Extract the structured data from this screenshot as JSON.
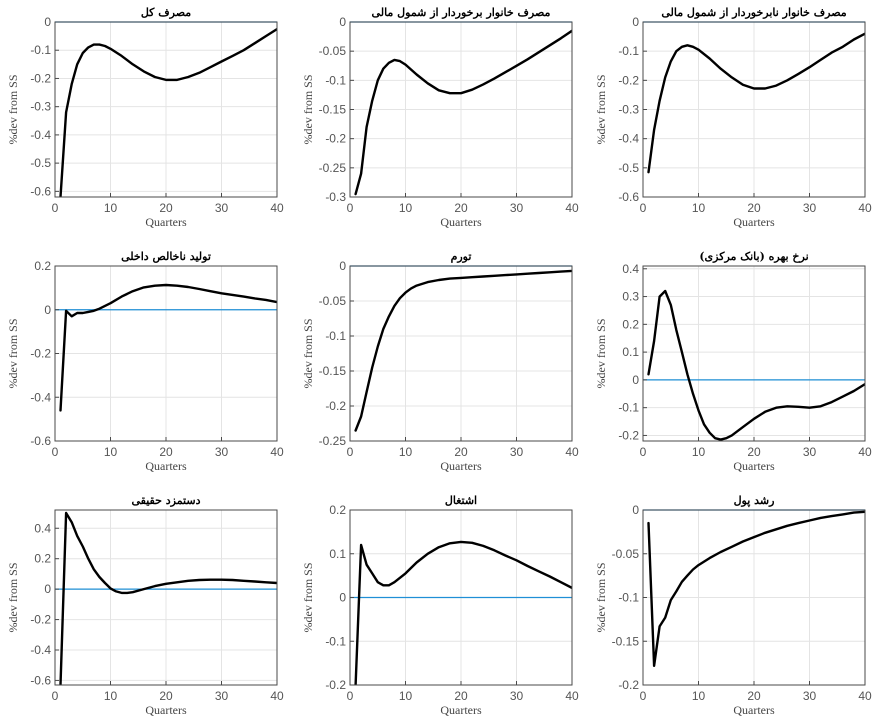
{
  "colors": {
    "series": "#000000",
    "zero_line": "#1f8fd6",
    "grid": "#e4e4e4",
    "axes": "#4a4a4a"
  },
  "chart_data": [
    {
      "type": "line",
      "title": "مصرف کل",
      "xlabel": "Quarters",
      "ylabel": "%dev from SS",
      "xlim": [
        0,
        40
      ],
      "ylim": [
        -0.62,
        0
      ],
      "xticks": [
        0,
        10,
        20,
        30,
        40
      ],
      "yticks": [
        0,
        -0.1,
        -0.2,
        -0.3,
        -0.4,
        -0.5,
        -0.6
      ],
      "grid": true,
      "zero_line": 0,
      "series": [
        {
          "x": [
            1,
            2,
            3,
            4,
            5,
            6,
            7,
            8,
            9,
            10,
            12,
            14,
            16,
            18,
            20,
            22,
            24,
            26,
            28,
            30,
            32,
            34,
            36,
            38,
            40
          ],
          "y": [
            -0.62,
            -0.32,
            -0.22,
            -0.15,
            -0.11,
            -0.09,
            -0.08,
            -0.08,
            -0.085,
            -0.095,
            -0.12,
            -0.15,
            -0.175,
            -0.195,
            -0.205,
            -0.205,
            -0.195,
            -0.18,
            -0.16,
            -0.14,
            -0.12,
            -0.1,
            -0.075,
            -0.05,
            -0.025
          ]
        }
      ]
    },
    {
      "type": "line",
      "title": "مصرف خانوار برخوردار از شمول مالی",
      "xlabel": "Quarters",
      "ylabel": "%dev from SS",
      "xlim": [
        0,
        40
      ],
      "ylim": [
        -0.3,
        0
      ],
      "xticks": [
        0,
        10,
        20,
        30,
        40
      ],
      "yticks": [
        0,
        -0.05,
        -0.1,
        -0.15,
        -0.2,
        -0.25,
        -0.3
      ],
      "grid": true,
      "zero_line": 0,
      "series": [
        {
          "x": [
            1,
            2,
            3,
            4,
            5,
            6,
            7,
            8,
            9,
            10,
            12,
            14,
            16,
            18,
            20,
            22,
            24,
            26,
            28,
            30,
            32,
            34,
            36,
            38,
            40
          ],
          "y": [
            -0.295,
            -0.26,
            -0.18,
            -0.135,
            -0.1,
            -0.08,
            -0.07,
            -0.065,
            -0.067,
            -0.073,
            -0.09,
            -0.105,
            -0.117,
            -0.122,
            -0.122,
            -0.116,
            -0.107,
            -0.097,
            -0.086,
            -0.075,
            -0.064,
            -0.052,
            -0.04,
            -0.028,
            -0.015
          ]
        }
      ]
    },
    {
      "type": "line",
      "title": "مصرف خانوار نابرخوردار از شمول مالی",
      "xlabel": "Quarters",
      "ylabel": "%dev from SS",
      "xlim": [
        0,
        40
      ],
      "ylim": [
        -0.6,
        0
      ],
      "xticks": [
        0,
        10,
        20,
        30,
        40
      ],
      "yticks": [
        0,
        -0.1,
        -0.2,
        -0.3,
        -0.4,
        -0.5,
        -0.6
      ],
      "grid": true,
      "zero_line": 0,
      "series": [
        {
          "x": [
            1,
            2,
            3,
            4,
            5,
            6,
            7,
            8,
            9,
            10,
            12,
            14,
            16,
            18,
            20,
            22,
            24,
            26,
            28,
            30,
            32,
            34,
            36,
            38,
            40
          ],
          "y": [
            -0.515,
            -0.37,
            -0.27,
            -0.19,
            -0.135,
            -0.1,
            -0.085,
            -0.08,
            -0.085,
            -0.095,
            -0.125,
            -0.16,
            -0.19,
            -0.215,
            -0.228,
            -0.228,
            -0.218,
            -0.2,
            -0.178,
            -0.155,
            -0.13,
            -0.105,
            -0.085,
            -0.06,
            -0.04
          ]
        }
      ]
    },
    {
      "type": "line",
      "title": "تولید ناخالص داخلی",
      "xlabel": "Quarters",
      "ylabel": "%dev from SS",
      "xlim": [
        0,
        40
      ],
      "ylim": [
        -0.6,
        0.2
      ],
      "xticks": [
        0,
        10,
        20,
        30,
        40
      ],
      "yticks": [
        0.2,
        0,
        -0.2,
        -0.4,
        -0.6
      ],
      "grid": true,
      "zero_line": 0,
      "series": [
        {
          "x": [
            1,
            2,
            3,
            4,
            5,
            6,
            7,
            8,
            10,
            12,
            14,
            16,
            18,
            20,
            22,
            24,
            26,
            28,
            30,
            32,
            34,
            36,
            38,
            40
          ],
          "y": [
            -0.46,
            -0.005,
            -0.03,
            -0.015,
            -0.015,
            -0.01,
            -0.005,
            0.005,
            0.03,
            0.06,
            0.085,
            0.102,
            0.11,
            0.113,
            0.11,
            0.104,
            0.095,
            0.085,
            0.075,
            0.068,
            0.06,
            0.052,
            0.045,
            0.035
          ]
        }
      ]
    },
    {
      "type": "line",
      "title": "تورم",
      "xlabel": "Quarters",
      "ylabel": "%dev from SS",
      "xlim": [
        0,
        40
      ],
      "ylim": [
        -0.25,
        0
      ],
      "xticks": [
        0,
        10,
        20,
        30,
        40
      ],
      "yticks": [
        0,
        -0.05,
        -0.1,
        -0.15,
        -0.2,
        -0.25
      ],
      "grid": true,
      "zero_line": 0,
      "series": [
        {
          "x": [
            1,
            2,
            3,
            4,
            5,
            6,
            7,
            8,
            9,
            10,
            11,
            12,
            14,
            16,
            18,
            20,
            22,
            24,
            26,
            28,
            30,
            32,
            34,
            36,
            38,
            40
          ],
          "y": [
            -0.235,
            -0.215,
            -0.18,
            -0.145,
            -0.115,
            -0.09,
            -0.072,
            -0.057,
            -0.046,
            -0.038,
            -0.032,
            -0.028,
            -0.023,
            -0.02,
            -0.018,
            -0.017,
            -0.016,
            -0.015,
            -0.014,
            -0.013,
            -0.012,
            -0.011,
            -0.01,
            -0.009,
            -0.008,
            -0.007
          ]
        }
      ]
    },
    {
      "type": "line",
      "title": "نرخ بهره (بانک مرکزی)",
      "xlabel": "Quarters",
      "ylabel": "%dev from SS",
      "xlim": [
        0,
        40
      ],
      "ylim": [
        -0.22,
        0.41
      ],
      "xticks": [
        0,
        10,
        20,
        30,
        40
      ],
      "yticks": [
        0.4,
        0.3,
        0.2,
        0.1,
        0,
        -0.1,
        -0.2
      ],
      "grid": true,
      "zero_line": 0,
      "series": [
        {
          "x": [
            1,
            2,
            3,
            4,
            5,
            6,
            7,
            8,
            9,
            10,
            11,
            12,
            13,
            14,
            15,
            16,
            18,
            20,
            22,
            24,
            26,
            28,
            30,
            32,
            34,
            36,
            38,
            40
          ],
          "y": [
            0.02,
            0.14,
            0.3,
            0.32,
            0.27,
            0.18,
            0.1,
            0.02,
            -0.05,
            -0.11,
            -0.16,
            -0.19,
            -0.21,
            -0.215,
            -0.21,
            -0.2,
            -0.17,
            -0.14,
            -0.115,
            -0.1,
            -0.095,
            -0.097,
            -0.1,
            -0.095,
            -0.08,
            -0.06,
            -0.04,
            -0.015
          ]
        }
      ]
    },
    {
      "type": "line",
      "title": "دستمزد حقیقی",
      "xlabel": "Quarters",
      "ylabel": "%dev from SS",
      "xlim": [
        0,
        40
      ],
      "ylim": [
        -0.63,
        0.52
      ],
      "xticks": [
        0,
        10,
        20,
        30,
        40
      ],
      "yticks": [
        0.4,
        0.2,
        0,
        -0.2,
        -0.4,
        -0.6
      ],
      "grid": true,
      "zero_line": 0,
      "series": [
        {
          "x": [
            1,
            2,
            3,
            4,
            5,
            6,
            7,
            8,
            9,
            10,
            11,
            12,
            13,
            14,
            16,
            18,
            20,
            22,
            24,
            26,
            28,
            30,
            32,
            34,
            36,
            38,
            40
          ],
          "y": [
            -0.63,
            0.5,
            0.44,
            0.35,
            0.28,
            0.2,
            0.13,
            0.08,
            0.04,
            0.005,
            -0.015,
            -0.025,
            -0.025,
            -0.02,
            0.0,
            0.02,
            0.035,
            0.045,
            0.055,
            0.06,
            0.062,
            0.062,
            0.06,
            0.055,
            0.05,
            0.045,
            0.04
          ]
        }
      ]
    },
    {
      "type": "line",
      "title": "اشتغال",
      "xlabel": "Quarters",
      "ylabel": "%dev from SS",
      "xlim": [
        0,
        40
      ],
      "ylim": [
        -0.2,
        0.2
      ],
      "xticks": [
        0,
        10,
        20,
        30,
        40
      ],
      "yticks": [
        0.2,
        0.1,
        0,
        -0.1,
        -0.2
      ],
      "grid": true,
      "zero_line": 0,
      "series": [
        {
          "x": [
            1,
            2,
            3,
            4,
            5,
            6,
            7,
            8,
            10,
            12,
            14,
            16,
            18,
            20,
            22,
            24,
            26,
            28,
            30,
            32,
            34,
            36,
            38,
            40
          ],
          "y": [
            -0.2,
            0.12,
            0.075,
            0.055,
            0.035,
            0.028,
            0.028,
            0.035,
            0.055,
            0.08,
            0.1,
            0.115,
            0.124,
            0.127,
            0.125,
            0.118,
            0.108,
            0.096,
            0.085,
            0.072,
            0.06,
            0.048,
            0.035,
            0.022
          ]
        }
      ]
    },
    {
      "type": "line",
      "title": "رشد پول",
      "xlabel": "Quarters",
      "ylabel": "%dev from SS",
      "xlim": [
        0,
        40
      ],
      "ylim": [
        -0.2,
        0
      ],
      "xticks": [
        0,
        10,
        20,
        30,
        40
      ],
      "yticks": [
        0,
        -0.05,
        -0.1,
        -0.15,
        -0.2
      ],
      "grid": true,
      "zero_line": 0,
      "series": [
        {
          "x": [
            1,
            2,
            3,
            4,
            5,
            6,
            7,
            8,
            9,
            10,
            12,
            14,
            16,
            18,
            20,
            22,
            24,
            26,
            28,
            30,
            32,
            34,
            36,
            38,
            40
          ],
          "y": [
            -0.015,
            -0.178,
            -0.133,
            -0.123,
            -0.103,
            -0.093,
            -0.082,
            -0.075,
            -0.068,
            -0.063,
            -0.055,
            -0.048,
            -0.042,
            -0.036,
            -0.031,
            -0.026,
            -0.022,
            -0.018,
            -0.015,
            -0.012,
            -0.009,
            -0.007,
            -0.005,
            -0.003,
            -0.002
          ]
        }
      ]
    }
  ]
}
